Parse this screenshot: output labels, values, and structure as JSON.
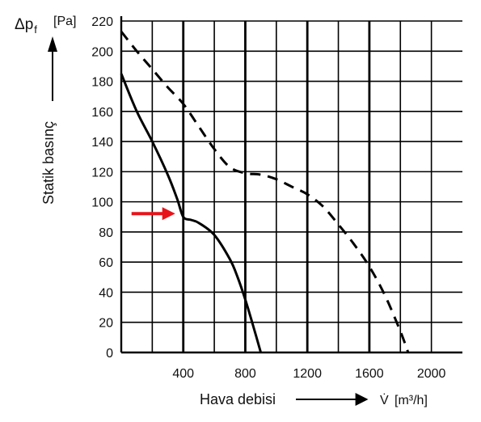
{
  "chart_data": {
    "type": "line",
    "xlabel": "Hava debisi",
    "x_unit_symbol": "V̇",
    "x_unit": "[m³/h]",
    "ylabel": "Statik basınç",
    "y_symbol": "Δp",
    "y_subscript": "f",
    "y_unit": "[Pa]",
    "xlim": [
      0,
      2200
    ],
    "ylim": [
      0,
      220
    ],
    "x_tick_labels": [
      "400",
      "800",
      "1200",
      "1600",
      "2000"
    ],
    "x_ticks": [
      400,
      800,
      1200,
      1600,
      2000
    ],
    "y_ticks": [
      0,
      20,
      40,
      60,
      80,
      100,
      120,
      140,
      160,
      180,
      200,
      220
    ],
    "vertical_gridlines": [
      200,
      400,
      600,
      800,
      1000,
      1200,
      1400,
      1600,
      1800,
      2000
    ],
    "bold_vertical_gridlines": [
      400,
      800,
      1200,
      1600
    ],
    "series": [
      {
        "style": "solid",
        "color": "#000000",
        "points": [
          [
            0,
            185
          ],
          [
            100,
            160
          ],
          [
            200,
            140
          ],
          [
            300,
            118
          ],
          [
            360,
            102
          ],
          [
            400,
            90
          ],
          [
            450,
            88
          ],
          [
            500,
            86
          ],
          [
            600,
            78
          ],
          [
            700,
            62
          ],
          [
            750,
            50
          ],
          [
            800,
            35
          ],
          [
            850,
            18
          ],
          [
            900,
            0
          ]
        ]
      },
      {
        "style": "dashed",
        "color": "#000000",
        "points": [
          [
            0,
            213
          ],
          [
            100,
            200
          ],
          [
            200,
            188
          ],
          [
            300,
            176
          ],
          [
            400,
            165
          ],
          [
            500,
            150
          ],
          [
            600,
            135
          ],
          [
            700,
            123
          ],
          [
            800,
            119
          ],
          [
            900,
            118
          ],
          [
            1000,
            115
          ],
          [
            1100,
            110
          ],
          [
            1200,
            105
          ],
          [
            1300,
            97
          ],
          [
            1400,
            85
          ],
          [
            1500,
            72
          ],
          [
            1600,
            57
          ],
          [
            1700,
            38
          ],
          [
            1800,
            14
          ],
          [
            1850,
            0
          ]
        ]
      }
    ],
    "annotation": {
      "type": "arrow",
      "color": "#e8141b",
      "points_to": [
        400,
        90
      ]
    }
  }
}
